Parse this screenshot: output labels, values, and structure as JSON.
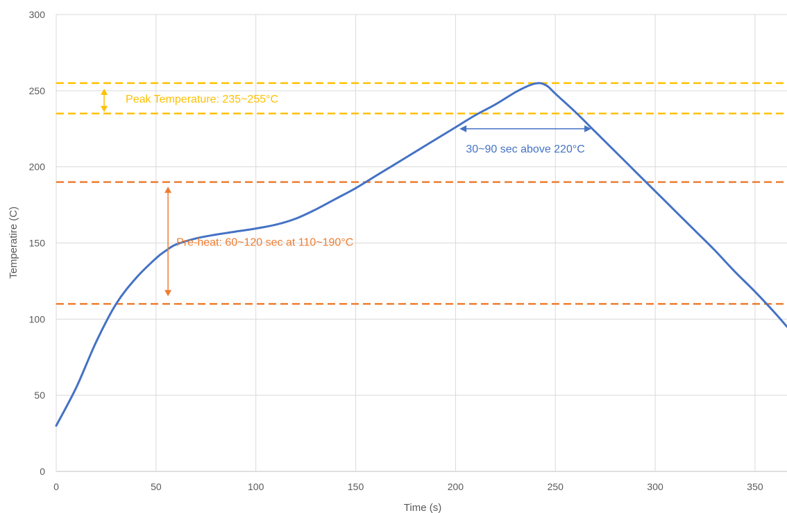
{
  "chart_data": {
    "type": "line",
    "title": "",
    "xlabel": "Time (s)",
    "ylabel": "Temperatire (C)",
    "xlim": [
      0,
      366
    ],
    "ylim": [
      0,
      300
    ],
    "x_ticks": [
      "0",
      "50",
      "100",
      "150",
      "200",
      "250",
      "300",
      "350"
    ],
    "y_ticks": [
      "0",
      "50",
      "100",
      "150",
      "200",
      "250",
      "300"
    ],
    "grid": true,
    "series": [
      {
        "color": "#4472C4",
        "points": [
          [
            0,
            30
          ],
          [
            10,
            55
          ],
          [
            20,
            85
          ],
          [
            30,
            110
          ],
          [
            40,
            127
          ],
          [
            50,
            140
          ],
          [
            55,
            145
          ],
          [
            60,
            149
          ],
          [
            70,
            153
          ],
          [
            80,
            155.5
          ],
          [
            90,
            157.5
          ],
          [
            100,
            159.5
          ],
          [
            110,
            162
          ],
          [
            120,
            166
          ],
          [
            130,
            172
          ],
          [
            140,
            179
          ],
          [
            150,
            186
          ],
          [
            160,
            194
          ],
          [
            170,
            202
          ],
          [
            180,
            210
          ],
          [
            190,
            218
          ],
          [
            200,
            226
          ],
          [
            210,
            234
          ],
          [
            220,
            241
          ],
          [
            230,
            249
          ],
          [
            237,
            253.5
          ],
          [
            242,
            255
          ],
          [
            246,
            253
          ],
          [
            250,
            248
          ],
          [
            260,
            236
          ],
          [
            270,
            223
          ],
          [
            280,
            210
          ],
          [
            290,
            197
          ],
          [
            300,
            184
          ],
          [
            310,
            171
          ],
          [
            320,
            158
          ],
          [
            330,
            145
          ],
          [
            340,
            131
          ],
          [
            350,
            118
          ],
          [
            360,
            104
          ],
          [
            366,
            95
          ]
        ]
      }
    ],
    "reference_lines": [
      {
        "y": 255,
        "color": "#FFC000"
      },
      {
        "y": 235,
        "color": "#FFC000"
      },
      {
        "y": 190,
        "color": "#ED7D31"
      },
      {
        "y": 110,
        "color": "#ED7D31"
      }
    ],
    "annotations": [
      {
        "text": "Peak Temperature: 235~255°C",
        "color": "#FFC000",
        "arrow": "vertical",
        "x": 24,
        "y1": 235,
        "y2": 255
      },
      {
        "text": "30~90 sec above 220°C",
        "color": "#4472C4",
        "arrow": "horizontal",
        "y": 225,
        "x1": 202,
        "x2": 268
      },
      {
        "text": "Pre-heat: 60~120 sec at 110~190°C",
        "color": "#ED7D31",
        "arrow": "vertical",
        "x": 56,
        "y1": 115,
        "y2": 187
      }
    ]
  }
}
